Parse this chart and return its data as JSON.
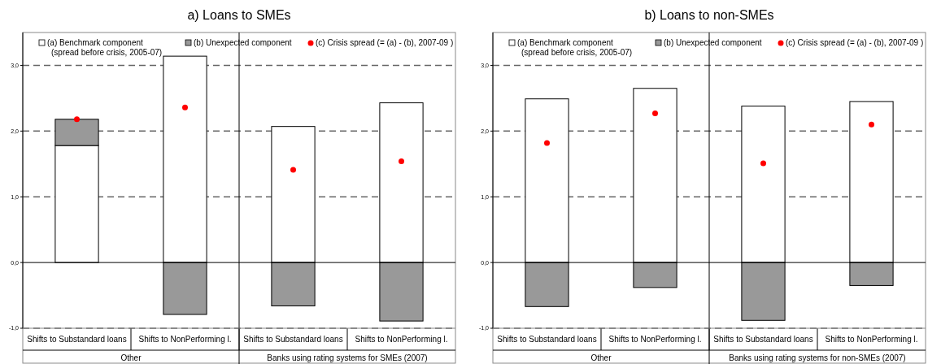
{
  "chart_data": [
    {
      "type": "bar",
      "title": "a) Loans to SMEs",
      "stacked": true,
      "legend": "top",
      "grid": "y",
      "line_style": "dashed",
      "categories": [
        "Shifts to Substandard loans",
        "Shifts to NonPerforming l.",
        "Shifts to Substandard loans",
        "Shifts to NonPerforming l."
      ],
      "annotations": [
        "Other",
        "Banks using rating systems for SMEs (2007)"
      ],
      "ylim": [
        -1,
        3.5
      ],
      "yticks": [
        {
          "value": -1,
          "label": "-1,0"
        },
        {
          "value": 0,
          "label": "0,0"
        },
        {
          "value": 1,
          "label": "1,0"
        },
        {
          "value": 2,
          "label": "2,0"
        },
        {
          "value": 3,
          "label": "3,0"
        }
      ],
      "series": [
        {
          "name": "(a)  Benchmark component\n(spread before crisis, 2005-07)",
          "color": "#ffffff",
          "values": [
            1.78,
            3.14,
            2.07,
            2.43
          ]
        },
        {
          "name": "(b) Unexpected component",
          "color": "#999999",
          "values": [
            0.4,
            -0.79,
            -0.66,
            -0.89
          ]
        },
        {
          "name": "(c) Crisis spread (= (a) - (b), 2007-09 )",
          "type": "scatter",
          "marker": "circle",
          "color": "#ff0000",
          "values": [
            2.18,
            2.36,
            1.41,
            1.54
          ]
        }
      ]
    },
    {
      "type": "bar",
      "title": "b) Loans to non-SMEs",
      "stacked": true,
      "legend": "top",
      "grid": "y",
      "line_style": "dashed",
      "categories": [
        "Shifts to Substandard loans",
        "Shifts to NonPerforming l.",
        "Shifts to Substandard loans",
        "Shifts to NonPerforming l."
      ],
      "annotations": [
        "Other",
        "Banks using rating systems for non-SMEs (2007)"
      ],
      "ylim": [
        -1,
        3.5
      ],
      "yticks": [
        {
          "value": -1,
          "label": "-1,0"
        },
        {
          "value": 0,
          "label": "0,0"
        },
        {
          "value": 1,
          "label": "1,0"
        },
        {
          "value": 2,
          "label": "2,0"
        },
        {
          "value": 3,
          "label": "3,0"
        }
      ],
      "series": [
        {
          "name": "(a)  Benchmark component\n(spread before crisis, 2005-07)",
          "color": "#ffffff",
          "values": [
            2.49,
            2.65,
            2.38,
            2.45
          ]
        },
        {
          "name": "(b) Unexpected component",
          "color": "#999999",
          "values": [
            -0.67,
            -0.38,
            -0.88,
            -0.35
          ]
        },
        {
          "name": "(c) Crisis spread (= (a) - (b), 2007-09 )",
          "type": "scatter",
          "marker": "circle",
          "color": "#ff0000",
          "values": [
            1.82,
            2.27,
            1.51,
            2.1
          ]
        }
      ]
    }
  ]
}
